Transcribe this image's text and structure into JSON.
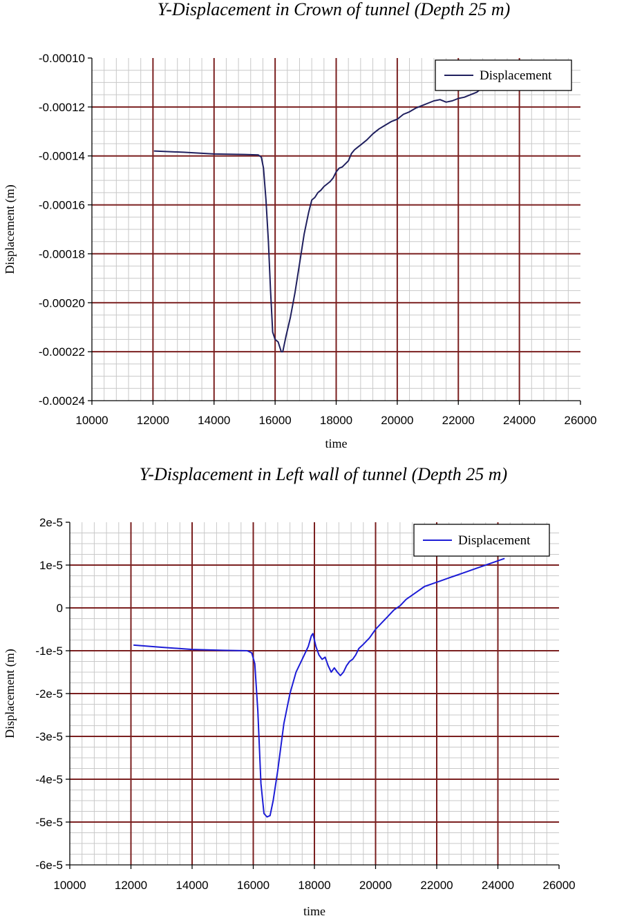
{
  "chart_data": [
    {
      "type": "line",
      "title": "Y-Displacement in Crown of tunnel (Depth 25 m)",
      "xlabel": "time",
      "ylabel": "Displacement (m)",
      "xlim": [
        10000,
        26000
      ],
      "ylim": [
        -0.00024,
        -0.0001
      ],
      "x_ticks": [
        10000,
        12000,
        14000,
        16000,
        18000,
        20000,
        22000,
        24000,
        26000
      ],
      "x_tick_labels": [
        "10000",
        "12000",
        "14000",
        "16000",
        "18000",
        "20000",
        "22000",
        "24000",
        "26000"
      ],
      "y_ticks": [
        -0.0001,
        -0.00012,
        -0.00014,
        -0.00016,
        -0.00018,
        -0.0002,
        -0.00022,
        -0.00024
      ],
      "y_tick_labels": [
        "-0.00010",
        "-0.00012",
        "-0.00014",
        "-0.00016",
        "-0.00018",
        "-0.00020",
        "-0.00022",
        "-0.00024"
      ],
      "grid": true,
      "legend_position": "top-right",
      "colors": {
        "series": "#1f1f5e",
        "major_grid": "#7a1f1f",
        "minor_grid": "#c8c8c8",
        "axis": "#000000"
      },
      "series": [
        {
          "name": "Displacement",
          "x": [
            12050,
            13000,
            14000,
            15000,
            15450,
            15550,
            15620,
            15700,
            15780,
            15850,
            15920,
            16000,
            16100,
            16200,
            16250,
            16350,
            16500,
            16650,
            16800,
            16950,
            17100,
            17200,
            17300,
            17400,
            17500,
            17600,
            17700,
            17800,
            17900,
            18000,
            18100,
            18200,
            18400,
            18500,
            18600,
            18700,
            18800,
            19000,
            19200,
            19400,
            19600,
            19800,
            20000,
            20200,
            20400,
            20600,
            20800,
            21000,
            21200,
            21400,
            21600,
            21800,
            22000,
            22200,
            22400,
            22600,
            22700
          ],
          "y": [
            -0.000138,
            -0.0001385,
            -0.0001392,
            -0.0001394,
            -0.0001396,
            -0.0001405,
            -0.000145,
            -0.000158,
            -0.000175,
            -0.000195,
            -0.000212,
            -0.000215,
            -0.000216,
            -0.00022,
            -0.00022,
            -0.000214,
            -0.000206,
            -0.000196,
            -0.000184,
            -0.000172,
            -0.000163,
            -0.000158,
            -0.000157,
            -0.000155,
            -0.000154,
            -0.0001525,
            -0.0001515,
            -0.0001505,
            -0.000149,
            -0.0001465,
            -0.000145,
            -0.0001445,
            -0.000142,
            -0.000139,
            -0.0001375,
            -0.0001365,
            -0.0001355,
            -0.0001335,
            -0.000131,
            -0.000129,
            -0.0001275,
            -0.000126,
            -0.000125,
            -0.000123,
            -0.000122,
            -0.0001205,
            -0.0001195,
            -0.0001185,
            -0.0001175,
            -0.000117,
            -0.000118,
            -0.0001175,
            -0.0001165,
            -0.000116,
            -0.000115,
            -0.000114,
            -0.000113
          ]
        }
      ]
    },
    {
      "type": "line",
      "title": "Y-Displacement in Left wall of tunnel (Depth 25 m)",
      "xlabel": "time",
      "ylabel": "Displacement (m)",
      "xlim": [
        10000,
        26000
      ],
      "ylim": [
        -6e-05,
        2e-05
      ],
      "x_ticks": [
        10000,
        12000,
        14000,
        16000,
        18000,
        20000,
        22000,
        24000,
        26000
      ],
      "x_tick_labels": [
        "10000",
        "12000",
        "14000",
        "16000",
        "18000",
        "20000",
        "22000",
        "24000",
        "26000"
      ],
      "y_ticks": [
        2e-05,
        1e-05,
        0,
        -1e-05,
        -2e-05,
        -3e-05,
        -4e-05,
        -5e-05,
        -6e-05
      ],
      "y_tick_labels": [
        "2e-5",
        "1e-5",
        "0",
        "-1e-5",
        "-2e-5",
        "-3e-5",
        "-4e-5",
        "-5e-5",
        "-6e-5"
      ],
      "grid": true,
      "legend_position": "top-right",
      "colors": {
        "series": "#1c1cd6",
        "major_grid": "#7a1f1f",
        "minor_grid": "#c8c8c8",
        "axis": "#000000"
      },
      "series": [
        {
          "name": "Displacement",
          "x": [
            12100,
            13000,
            14000,
            15000,
            15800,
            15950,
            16050,
            16150,
            16250,
            16350,
            16450,
            16550,
            16650,
            16800,
            17000,
            17200,
            17400,
            17600,
            17800,
            17900,
            17950,
            18050,
            18150,
            18250,
            18350,
            18450,
            18550,
            18650,
            18750,
            18850,
            18950,
            19050,
            19150,
            19250,
            19350,
            19450,
            19600,
            19800,
            20000,
            20200,
            20400,
            20600,
            20800,
            21000,
            21200,
            21400,
            21600,
            21800,
            22000,
            22200,
            22400,
            22600,
            22800,
            23000,
            23200,
            23400,
            23600,
            23800,
            24000,
            24200
          ],
          "y": [
            -8.7e-06,
            -9.2e-06,
            -9.7e-06,
            -9.9e-06,
            -1e-05,
            -1.05e-05,
            -1.3e-05,
            -2.4e-05,
            -4.1e-05,
            -4.8e-05,
            -4.88e-05,
            -4.85e-05,
            -4.5e-05,
            -3.8e-05,
            -2.7e-05,
            -2e-05,
            -1.5e-05,
            -1.2e-05,
            -9e-06,
            -6.5e-06,
            -6e-06,
            -9e-06,
            -1.1e-05,
            -1.2e-05,
            -1.15e-05,
            -1.35e-05,
            -1.5e-05,
            -1.4e-05,
            -1.5e-05,
            -1.58e-05,
            -1.5e-05,
            -1.35e-05,
            -1.25e-05,
            -1.2e-05,
            -1.1e-05,
            -9.5e-06,
            -8.5e-06,
            -7e-06,
            -5e-06,
            -3.5e-06,
            -2e-06,
            -5e-07,
            5e-07,
            2e-06,
            3e-06,
            4e-06,
            5e-06,
            5.5e-06,
            6e-06,
            6.5e-06,
            7e-06,
            7.5e-06,
            8e-06,
            8.5e-06,
            9e-06,
            9.5e-06,
            1e-05,
            1.05e-05,
            1.1e-05,
            1.15e-05
          ]
        }
      ]
    }
  ]
}
